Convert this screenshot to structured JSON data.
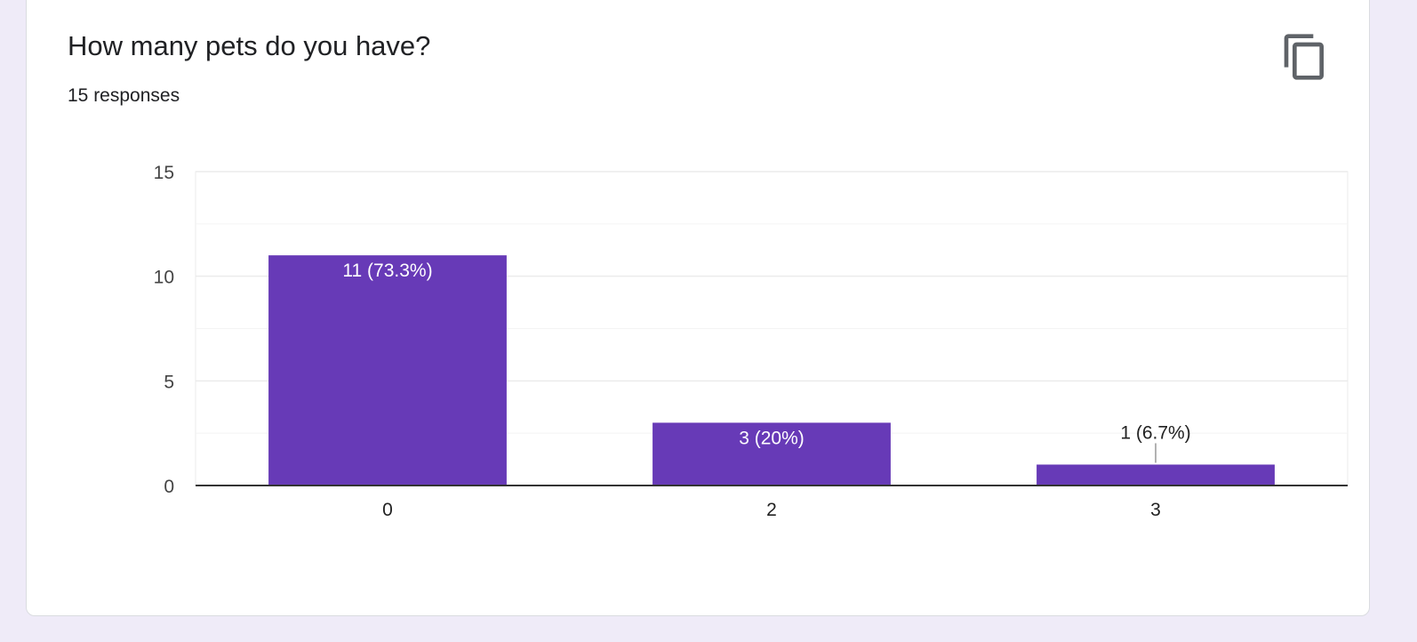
{
  "question": {
    "title": "How many pets do you have?",
    "responses": "15 responses"
  },
  "actions": {
    "copy_icon": "copy-icon"
  },
  "colors": {
    "bar": "#673ab7",
    "page_background": "#efebf8",
    "card_background": "#ffffff",
    "grid": "#ebebeb",
    "baseline": "#333333",
    "text": "#202124"
  },
  "chart_data": {
    "type": "bar",
    "categories": [
      "0",
      "2",
      "3"
    ],
    "values": [
      11,
      3,
      1
    ],
    "data_labels": [
      "11 (73.3%)",
      "3 (20%)",
      "1 (6.7%)"
    ],
    "title": "",
    "xlabel": "",
    "ylabel": "",
    "ylim": [
      0,
      15
    ],
    "yticks": [
      0,
      5,
      10,
      15
    ],
    "grid": true,
    "legend": "none"
  }
}
